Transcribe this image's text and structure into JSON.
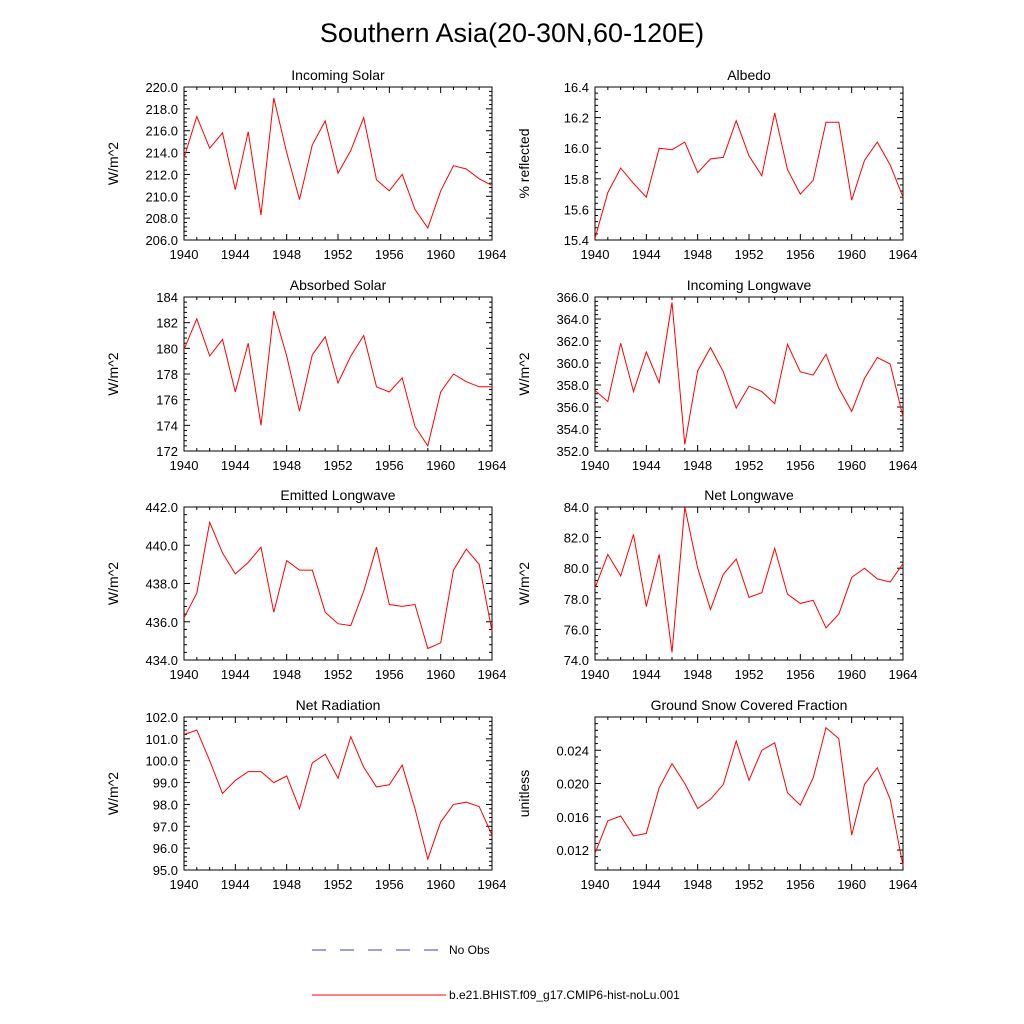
{
  "title": "Southern Asia(20-30N,60-120E)",
  "legend": {
    "obs_label": "No Obs",
    "model_label": "b.e21.BHIST.f09_g17.CMIP6-hist-noLu.001",
    "obs_color": "#4040c0",
    "model_color": "#ff0000"
  },
  "chart_data": [
    {
      "type": "line",
      "title": "Incoming Solar",
      "ylabel": "W/m^2",
      "ylim": [
        206.0,
        220.0
      ],
      "yticks": [
        206.0,
        208.0,
        210.0,
        212.0,
        214.0,
        216.0,
        218.0,
        220.0
      ],
      "ytick_labels": [
        "206.0",
        "208.0",
        "210.0",
        "212.0",
        "214.0",
        "216.0",
        "218.0",
        "220.0"
      ],
      "xlim": [
        1940,
        1964
      ],
      "xticks": [
        1940,
        1944,
        1948,
        1952,
        1956,
        1960,
        1964
      ],
      "x": [
        1940,
        1941,
        1942,
        1943,
        1944,
        1945,
        1946,
        1947,
        1948,
        1949,
        1950,
        1951,
        1952,
        1953,
        1954,
        1955,
        1956,
        1957,
        1958,
        1959,
        1960,
        1961,
        1962,
        1963,
        1964
      ],
      "series": [
        {
          "values": [
            213.5,
            217.3,
            214.4,
            215.8,
            210.6,
            215.9,
            208.3,
            219.0,
            214.0,
            209.7,
            214.7,
            216.9,
            212.1,
            214.2,
            217.2,
            211.5,
            210.5,
            212.0,
            208.8,
            207.1,
            210.5,
            212.8,
            212.5,
            211.6,
            211.0
          ]
        }
      ]
    },
    {
      "type": "line",
      "title": "Albedo",
      "ylabel": "% reflected",
      "ylim": [
        15.4,
        16.4
      ],
      "yticks": [
        15.4,
        15.6,
        15.8,
        16.0,
        16.2,
        16.4
      ],
      "ytick_labels": [
        "15.4",
        "15.6",
        "15.8",
        "16.0",
        "16.2",
        "16.4"
      ],
      "xlim": [
        1940,
        1964
      ],
      "xticks": [
        1940,
        1944,
        1948,
        1952,
        1956,
        1960,
        1964
      ],
      "x": [
        1940,
        1941,
        1942,
        1943,
        1944,
        1945,
        1946,
        1947,
        1948,
        1949,
        1950,
        1951,
        1952,
        1953,
        1954,
        1955,
        1956,
        1957,
        1958,
        1959,
        1960,
        1961,
        1962,
        1963,
        1964
      ],
      "series": [
        {
          "values": [
            15.41,
            15.71,
            15.87,
            15.77,
            15.68,
            16.0,
            15.99,
            16.04,
            15.84,
            15.93,
            15.94,
            16.18,
            15.95,
            15.82,
            16.23,
            15.86,
            15.7,
            15.79,
            16.17,
            16.17,
            15.66,
            15.92,
            16.04,
            15.89,
            15.68
          ]
        }
      ]
    },
    {
      "type": "line",
      "title": "Absorbed Solar",
      "ylabel": "W/m^2",
      "ylim": [
        172,
        184
      ],
      "yticks": [
        172,
        174,
        176,
        178,
        180,
        182,
        184
      ],
      "ytick_labels": [
        "172",
        "174",
        "176",
        "178",
        "180",
        "182",
        "184"
      ],
      "xlim": [
        1940,
        1964
      ],
      "xticks": [
        1940,
        1944,
        1948,
        1952,
        1956,
        1960,
        1964
      ],
      "x": [
        1940,
        1941,
        1942,
        1943,
        1944,
        1945,
        1946,
        1947,
        1948,
        1949,
        1950,
        1951,
        1952,
        1953,
        1954,
        1955,
        1956,
        1957,
        1958,
        1959,
        1960,
        1961,
        1962,
        1963,
        1964
      ],
      "series": [
        {
          "values": [
            179.9,
            182.3,
            179.4,
            180.7,
            176.6,
            180.4,
            174.0,
            182.9,
            179.4,
            175.1,
            179.5,
            180.9,
            177.3,
            179.4,
            181.0,
            177.0,
            176.6,
            177.7,
            173.9,
            172.4,
            176.6,
            178.0,
            177.4,
            177.0,
            177.0
          ]
        }
      ]
    },
    {
      "type": "line",
      "title": "Incoming Longwave",
      "ylabel": "W/m^2",
      "ylim": [
        352.0,
        366.0
      ],
      "yticks": [
        352.0,
        354.0,
        356.0,
        358.0,
        360.0,
        362.0,
        364.0,
        366.0
      ],
      "ytick_labels": [
        "352.0",
        "354.0",
        "356.0",
        "358.0",
        "360.0",
        "362.0",
        "364.0",
        "366.0"
      ],
      "xlim": [
        1940,
        1964
      ],
      "xticks": [
        1940,
        1944,
        1948,
        1952,
        1956,
        1960,
        1964
      ],
      "x": [
        1940,
        1941,
        1942,
        1943,
        1944,
        1945,
        1946,
        1947,
        1948,
        1949,
        1950,
        1951,
        1952,
        1953,
        1954,
        1955,
        1956,
        1957,
        1958,
        1959,
        1960,
        1961,
        1962,
        1963,
        1964
      ],
      "series": [
        {
          "values": [
            357.5,
            356.5,
            361.8,
            357.4,
            361.0,
            358.2,
            365.5,
            352.6,
            359.3,
            361.4,
            359.2,
            355.9,
            357.9,
            357.4,
            356.3,
            361.7,
            359.2,
            358.9,
            360.8,
            357.7,
            355.6,
            358.6,
            360.5,
            359.9,
            355.1
          ]
        }
      ]
    },
    {
      "type": "line",
      "title": "Emitted Longwave",
      "ylabel": "W/m^2",
      "ylim": [
        434.0,
        442.0
      ],
      "yticks": [
        434.0,
        436.0,
        438.0,
        440.0,
        442.0
      ],
      "ytick_labels": [
        "434.0",
        "436.0",
        "438.0",
        "440.0",
        "442.0"
      ],
      "xlim": [
        1940,
        1964
      ],
      "xticks": [
        1940,
        1944,
        1948,
        1952,
        1956,
        1960,
        1964
      ],
      "x": [
        1940,
        1941,
        1942,
        1943,
        1944,
        1945,
        1946,
        1947,
        1948,
        1949,
        1950,
        1951,
        1952,
        1953,
        1954,
        1955,
        1956,
        1957,
        1958,
        1959,
        1960,
        1961,
        1962,
        1963,
        1964
      ],
      "series": [
        {
          "values": [
            436.2,
            437.5,
            441.2,
            439.6,
            438.5,
            439.1,
            439.9,
            436.5,
            439.2,
            438.7,
            438.7,
            436.5,
            435.9,
            435.8,
            437.6,
            439.9,
            436.9,
            436.8,
            436.9,
            434.6,
            434.9,
            438.7,
            439.8,
            439.0,
            435.5
          ]
        }
      ]
    },
    {
      "type": "line",
      "title": "Net Longwave",
      "ylabel": "W/m^2",
      "ylim": [
        74.0,
        84.0
      ],
      "yticks": [
        74.0,
        76.0,
        78.0,
        80.0,
        82.0,
        84.0
      ],
      "ytick_labels": [
        "74.0",
        "76.0",
        "78.0",
        "80.0",
        "82.0",
        "84.0"
      ],
      "xlim": [
        1940,
        1964
      ],
      "xticks": [
        1940,
        1944,
        1948,
        1952,
        1956,
        1960,
        1964
      ],
      "x": [
        1940,
        1941,
        1942,
        1943,
        1944,
        1945,
        1946,
        1947,
        1948,
        1949,
        1950,
        1951,
        1952,
        1953,
        1954,
        1955,
        1956,
        1957,
        1958,
        1959,
        1960,
        1961,
        1962,
        1963,
        1964
      ],
      "series": [
        {
          "values": [
            78.7,
            80.9,
            79.5,
            82.2,
            77.5,
            80.9,
            74.5,
            84.0,
            80.0,
            77.3,
            79.6,
            80.6,
            78.1,
            78.4,
            81.3,
            78.3,
            77.7,
            77.9,
            76.1,
            77.0,
            79.4,
            80.0,
            79.3,
            79.1,
            80.3
          ]
        }
      ]
    },
    {
      "type": "line",
      "title": "Net Radiation",
      "ylabel": "W/m^2",
      "ylim": [
        95.0,
        102.0
      ],
      "yticks": [
        95.0,
        96.0,
        97.0,
        98.0,
        99.0,
        100.0,
        101.0,
        102.0
      ],
      "ytick_labels": [
        "95.0",
        "96.0",
        "97.0",
        "98.0",
        "99.0",
        "100.0",
        "101.0",
        "102.0"
      ],
      "xlim": [
        1940,
        1964
      ],
      "xticks": [
        1940,
        1944,
        1948,
        1952,
        1956,
        1960,
        1964
      ],
      "x": [
        1940,
        1941,
        1942,
        1943,
        1944,
        1945,
        1946,
        1947,
        1948,
        1949,
        1950,
        1951,
        1952,
        1953,
        1954,
        1955,
        1956,
        1957,
        1958,
        1959,
        1960,
        1961,
        1962,
        1963,
        1964
      ],
      "series": [
        {
          "values": [
            101.2,
            101.4,
            100.0,
            98.5,
            99.1,
            99.5,
            99.5,
            99.0,
            99.3,
            97.8,
            99.9,
            100.3,
            99.2,
            101.1,
            99.7,
            98.8,
            98.9,
            99.8,
            97.8,
            95.5,
            97.2,
            98.0,
            98.1,
            97.9,
            96.6
          ]
        }
      ]
    },
    {
      "type": "line",
      "title": "Ground Snow Covered Fraction",
      "ylabel": "unitless",
      "ylim": [
        0.0096,
        0.028
      ],
      "yticks": [
        0.012,
        0.016,
        0.02,
        0.024
      ],
      "ytick_labels": [
        "0.012",
        "0.016",
        "0.020",
        "0.024"
      ],
      "xlim": [
        1940,
        1964
      ],
      "xticks": [
        1940,
        1944,
        1948,
        1952,
        1956,
        1960,
        1964
      ],
      "x": [
        1940,
        1941,
        1942,
        1943,
        1944,
        1945,
        1946,
        1947,
        1948,
        1949,
        1950,
        1951,
        1952,
        1953,
        1954,
        1955,
        1956,
        1957,
        1958,
        1959,
        1960,
        1961,
        1962,
        1963,
        1964
      ],
      "series": [
        {
          "values": [
            0.0116,
            0.0155,
            0.0161,
            0.0137,
            0.014,
            0.0195,
            0.0224,
            0.02,
            0.017,
            0.0181,
            0.0199,
            0.0251,
            0.0204,
            0.024,
            0.0249,
            0.0189,
            0.0174,
            0.0207,
            0.0267,
            0.0254,
            0.0138,
            0.0199,
            0.0219,
            0.0181,
            0.0101
          ]
        }
      ]
    }
  ]
}
